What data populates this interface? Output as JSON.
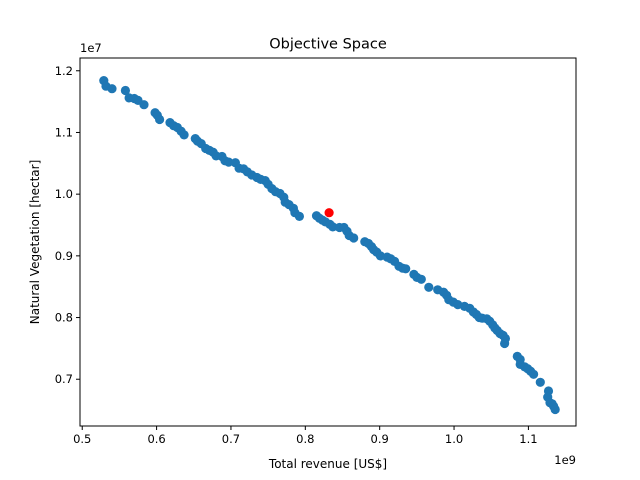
{
  "chart_data": {
    "type": "scatter",
    "title": "Objective Space",
    "xlabel": "Total revenue [US$]",
    "ylabel": "Natural Vegetation [hectar]",
    "x_multiplier": "1e9",
    "y_multiplier": "1e7",
    "xlim": [
      0.497,
      1.164
    ],
    "ylim": [
      0.6242,
      1.2207
    ],
    "xticks": [
      0.5,
      0.6,
      0.7,
      0.8,
      0.9,
      1.0,
      1.1
    ],
    "xtick_labels": [
      "0.5",
      "0.6",
      "0.7",
      "0.8",
      "0.9",
      "1.0",
      "1.1"
    ],
    "yticks": [
      0.7,
      0.8,
      0.9,
      1.0,
      1.1,
      1.2
    ],
    "ytick_labels": [
      "0.7",
      "0.8",
      "0.9",
      "1.0",
      "1.1",
      "1.2"
    ],
    "grid": false,
    "series": [
      {
        "color": "#1f77b4",
        "points": [
          [
            0.529,
            1.184
          ],
          [
            0.532,
            1.175
          ],
          [
            0.54,
            1.171
          ],
          [
            0.558,
            1.168
          ],
          [
            0.563,
            1.156
          ],
          [
            0.57,
            1.155
          ],
          [
            0.575,
            1.152
          ],
          [
            0.583,
            1.145
          ],
          [
            0.598,
            1.132
          ],
          [
            0.601,
            1.128
          ],
          [
            0.604,
            1.121
          ],
          [
            0.618,
            1.116
          ],
          [
            0.623,
            1.111
          ],
          [
            0.628,
            1.108
          ],
          [
            0.633,
            1.102
          ],
          [
            0.637,
            1.096
          ],
          [
            0.652,
            1.09
          ],
          [
            0.655,
            1.086
          ],
          [
            0.66,
            1.082
          ],
          [
            0.666,
            1.074
          ],
          [
            0.671,
            1.071
          ],
          [
            0.676,
            1.068
          ],
          [
            0.68,
            1.062
          ],
          [
            0.688,
            1.061
          ],
          [
            0.692,
            1.054
          ],
          [
            0.697,
            1.052
          ],
          [
            0.706,
            1.051
          ],
          [
            0.711,
            1.042
          ],
          [
            0.717,
            1.041
          ],
          [
            0.722,
            1.036
          ],
          [
            0.728,
            1.031
          ],
          [
            0.735,
            1.027
          ],
          [
            0.74,
            1.024
          ],
          [
            0.746,
            1.022
          ],
          [
            0.75,
            1.016
          ],
          [
            0.755,
            1.009
          ],
          [
            0.76,
            1.004
          ],
          [
            0.766,
            1.001
          ],
          [
            0.771,
            0.995
          ],
          [
            0.773,
            0.987
          ],
          [
            0.778,
            0.983
          ],
          [
            0.784,
            0.977
          ],
          [
            0.786,
            0.97
          ],
          [
            0.792,
            0.964
          ],
          [
            0.815,
            0.965
          ],
          [
            0.819,
            0.961
          ],
          [
            0.823,
            0.958
          ],
          [
            0.827,
            0.955
          ],
          [
            0.833,
            0.951
          ],
          [
            0.837,
            0.947
          ],
          [
            0.846,
            0.946
          ],
          [
            0.852,
            0.946
          ],
          [
            0.856,
            0.94
          ],
          [
            0.859,
            0.933
          ],
          [
            0.865,
            0.929
          ],
          [
            0.88,
            0.923
          ],
          [
            0.885,
            0.92
          ],
          [
            0.889,
            0.915
          ],
          [
            0.892,
            0.91
          ],
          [
            0.896,
            0.906
          ],
          [
            0.901,
            0.9
          ],
          [
            0.91,
            0.898
          ],
          [
            0.915,
            0.895
          ],
          [
            0.92,
            0.891
          ],
          [
            0.926,
            0.883
          ],
          [
            0.931,
            0.88
          ],
          [
            0.935,
            0.879
          ],
          [
            0.946,
            0.87
          ],
          [
            0.95,
            0.865
          ],
          [
            0.956,
            0.862
          ],
          [
            0.966,
            0.849
          ],
          [
            0.978,
            0.845
          ],
          [
            0.986,
            0.841
          ],
          [
            0.99,
            0.836
          ],
          [
            0.993,
            0.829
          ],
          [
            0.999,
            0.825
          ],
          [
            1.005,
            0.821
          ],
          [
            1.014,
            0.818
          ],
          [
            1.021,
            0.815
          ],
          [
            1.026,
            0.809
          ],
          [
            1.03,
            0.805
          ],
          [
            1.034,
            0.8
          ],
          [
            1.038,
            0.799
          ],
          [
            1.044,
            0.798
          ],
          [
            1.048,
            0.794
          ],
          [
            1.052,
            0.788
          ],
          [
            1.055,
            0.783
          ],
          [
            1.058,
            0.779
          ],
          [
            1.062,
            0.774
          ],
          [
            1.066,
            0.771
          ],
          [
            1.069,
            0.766
          ],
          [
            1.068,
            0.758
          ],
          [
            1.085,
            0.737
          ],
          [
            1.089,
            0.732
          ],
          [
            1.089,
            0.724
          ],
          [
            1.095,
            0.72
          ],
          [
            1.099,
            0.717
          ],
          [
            1.103,
            0.713
          ],
          [
            1.107,
            0.708
          ],
          [
            1.116,
            0.695
          ],
          [
            1.127,
            0.681
          ],
          [
            1.126,
            0.671
          ],
          [
            1.129,
            0.662
          ],
          [
            1.132,
            0.66
          ],
          [
            1.134,
            0.656
          ],
          [
            1.136,
            0.651
          ]
        ]
      },
      {
        "color": "#ff0000",
        "points": [
          [
            0.832,
            0.97
          ]
        ]
      }
    ]
  }
}
